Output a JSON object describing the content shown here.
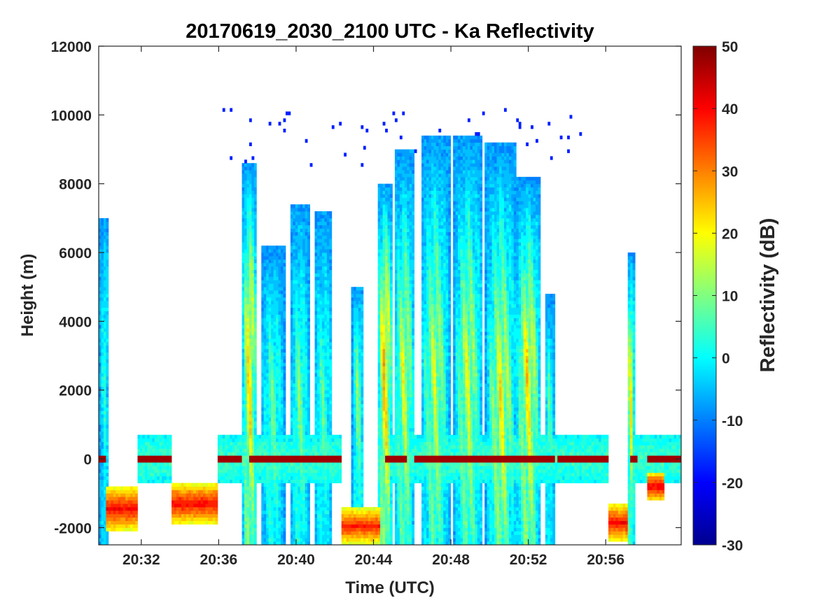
{
  "chart_data": {
    "type": "heatmap",
    "title": "20170619_2030_2100 UTC - Ka Reflectivity",
    "xlabel": "Time (UTC)",
    "ylabel": "Height (m)",
    "colorbar_label": "Reflectivity (dB)",
    "x_ticks": [
      "20:32",
      "20:36",
      "20:40",
      "20:44",
      "20:48",
      "20:52",
      "20:56"
    ],
    "x_tick_minutes": [
      32,
      36,
      40,
      44,
      48,
      52,
      56
    ],
    "xlim_minutes": [
      29.8,
      59.9
    ],
    "y_ticks": [
      "-2000",
      "0",
      "2000",
      "4000",
      "6000",
      "8000",
      "10000",
      "12000"
    ],
    "y_tick_values": [
      -2000,
      0,
      2000,
      4000,
      6000,
      8000,
      10000,
      12000
    ],
    "ylim": [
      -2500,
      12000
    ],
    "colorbar_ticks": [
      "-30",
      "-20",
      "-10",
      "0",
      "10",
      "20",
      "30",
      "40",
      "50"
    ],
    "colorbar_tick_values": [
      -30,
      -20,
      -10,
      0,
      10,
      20,
      30,
      40,
      50
    ],
    "clim": [
      -30,
      50
    ],
    "colormap": "jet",
    "colormap_stops": [
      "#00008f",
      "#0000ff",
      "#0080ff",
      "#00ffff",
      "#80ff80",
      "#ffff00",
      "#ff8000",
      "#ff0000",
      "#800000"
    ],
    "colorbar_position": "right",
    "grid": false,
    "features": {
      "ground_line": {
        "height": 0,
        "dB": 48,
        "segments": [
          [
            29.8,
            30.2
          ],
          [
            31.8,
            33.5
          ],
          [
            35.9,
            37.2
          ],
          [
            37.6,
            42.3
          ],
          [
            44.6,
            45.7
          ],
          [
            46.1,
            53.4
          ],
          [
            53.5,
            56.2
          ],
          [
            57.3,
            57.6
          ],
          [
            58.1,
            59.9
          ]
        ]
      },
      "surface_clutter_band": {
        "top": 700,
        "bottom": -700,
        "dB": 5,
        "segments": [
          [
            31.8,
            33.5
          ],
          [
            35.9,
            42.3
          ],
          [
            44.6,
            56.2
          ],
          [
            57.3,
            59.9
          ]
        ]
      },
      "below_ground_echo": [
        {
          "t0": 30.2,
          "t1": 31.8,
          "top": -800,
          "bottom": -2100,
          "dB": 40
        },
        {
          "t0": 33.5,
          "t1": 35.9,
          "top": -700,
          "bottom": -1900,
          "dB": 40
        },
        {
          "t0": 42.3,
          "t1": 44.4,
          "top": -1400,
          "bottom": -2500,
          "dB": 38
        },
        {
          "t0": 56.2,
          "t1": 57.2,
          "top": -1300,
          "bottom": -2400,
          "dB": 40
        },
        {
          "t0": 58.1,
          "t1": 59.0,
          "top": -400,
          "bottom": -1200,
          "dB": 42
        }
      ],
      "precipitation_columns": [
        {
          "center": 37.6,
          "width": 0.8,
          "top": 8600,
          "peak_height": 3800,
          "peak_dB": 33
        },
        {
          "center": 38.8,
          "width": 1.2,
          "top": 6200,
          "peak_height": 2000,
          "peak_dB": 12
        },
        {
          "center": 40.2,
          "width": 1.0,
          "top": 7400,
          "peak_height": 2000,
          "peak_dB": 14
        },
        {
          "center": 41.4,
          "width": 1.0,
          "top": 7200,
          "peak_height": 2000,
          "peak_dB": 10
        },
        {
          "center": 43.2,
          "width": 0.6,
          "top": 5000,
          "peak_height": 2500,
          "peak_dB": 15
        },
        {
          "center": 44.6,
          "width": 0.8,
          "top": 8000,
          "peak_height": 3800,
          "peak_dB": 36
        },
        {
          "center": 45.6,
          "width": 1.1,
          "top": 9000,
          "peak_height": 3000,
          "peak_dB": 24
        },
        {
          "center": 47.2,
          "width": 1.5,
          "top": 9400,
          "peak_height": 3000,
          "peak_dB": 22
        },
        {
          "center": 48.9,
          "width": 1.5,
          "top": 9400,
          "peak_height": 3000,
          "peak_dB": 23
        },
        {
          "center": 50.6,
          "width": 1.6,
          "top": 9200,
          "peak_height": 2000,
          "peak_dB": 27
        },
        {
          "center": 52.0,
          "width": 1.3,
          "top": 8200,
          "peak_height": 3000,
          "peak_dB": 30
        },
        {
          "center": 53.1,
          "width": 0.5,
          "top": 4800,
          "peak_height": 2000,
          "peak_dB": 10
        },
        {
          "center": 57.3,
          "width": 0.4,
          "top": 6000,
          "peak_height": 3000,
          "peak_dB": 30
        },
        {
          "center": 30.1,
          "width": 0.5,
          "top": 7000,
          "peak_height": 4000,
          "peak_dB": 6
        }
      ],
      "upper_ice_specks_dB": -18
    }
  }
}
